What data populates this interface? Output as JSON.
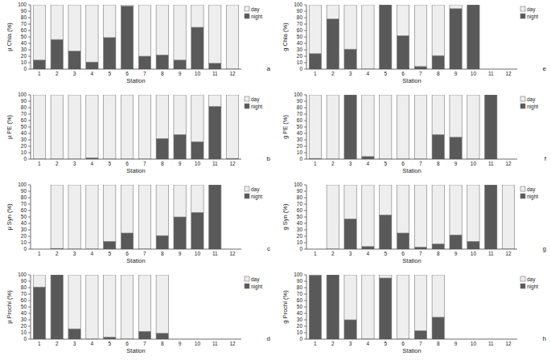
{
  "chart_data": [
    {
      "type": "bar",
      "title": "a",
      "x_label": "Station",
      "y_label": "µ Chla (%)",
      "stacked": true,
      "legend": "top-right",
      "categories": [
        "1",
        "2",
        "3",
        "4",
        "5",
        "6",
        "7",
        "8",
        "9",
        "10",
        "11",
        "12"
      ],
      "ylim": [
        0,
        100
      ],
      "yticks": [
        0,
        10,
        20,
        30,
        40,
        50,
        60,
        70,
        80,
        90,
        100
      ],
      "series": [
        {
          "name": "night",
          "color": "#595959",
          "values": [
            14,
            46,
            28,
            11,
            49,
            98,
            20,
            22,
            14,
            65,
            9,
            0
          ]
        },
        {
          "name": "day",
          "color": "#eeeeee",
          "values": [
            86,
            54,
            72,
            89,
            51,
            2,
            80,
            78,
            86,
            35,
            91,
            100
          ]
        }
      ]
    },
    {
      "type": "bar",
      "title": "b",
      "x_label": "Station",
      "y_label": "µ PE (%)",
      "stacked": true,
      "legend": "top-right",
      "categories": [
        "1",
        "2",
        "3",
        "4",
        "5",
        "6",
        "7",
        "8",
        "9",
        "10",
        "11",
        "12"
      ],
      "ylim": [
        0,
        100
      ],
      "yticks": [
        0,
        10,
        20,
        30,
        40,
        50,
        60,
        70,
        80,
        90,
        100
      ],
      "series": [
        {
          "name": "night",
          "color": "#595959",
          "values": [
            0,
            0,
            0,
            2,
            0,
            0,
            0,
            32,
            38,
            27,
            82,
            1
          ]
        },
        {
          "name": "day",
          "color": "#eeeeee",
          "values": [
            100,
            100,
            100,
            98,
            100,
            100,
            100,
            68,
            62,
            73,
            18,
            99
          ]
        }
      ]
    },
    {
      "type": "bar",
      "title": "c",
      "x_label": "Station",
      "y_label": "µ Syn (%)",
      "stacked": true,
      "legend": "top-right",
      "categories": [
        "1",
        "2",
        "3",
        "4",
        "5",
        "6",
        "7",
        "8",
        "9",
        "10",
        "11",
        "12"
      ],
      "ylim": [
        0,
        100
      ],
      "yticks": [
        0,
        10,
        20,
        30,
        40,
        50,
        60,
        70,
        80,
        90,
        100
      ],
      "series": [
        {
          "name": "night",
          "color": "#595959",
          "values": [
            null,
            1,
            0,
            0,
            12,
            25,
            0,
            21,
            50,
            57,
            100,
            null
          ]
        },
        {
          "name": "day",
          "color": "#eeeeee",
          "values": [
            null,
            99,
            100,
            100,
            88,
            75,
            100,
            79,
            50,
            43,
            0,
            null
          ]
        }
      ]
    },
    {
      "type": "bar",
      "title": "d",
      "x_label": "Station",
      "y_label": "µ Prochl (%)",
      "stacked": true,
      "legend": "top-right",
      "categories": [
        "1",
        "2",
        "3",
        "4",
        "5",
        "6",
        "7",
        "8",
        "9",
        "10",
        "11",
        "12"
      ],
      "ylim": [
        0,
        100
      ],
      "yticks": [
        0,
        10,
        20,
        30,
        40,
        50,
        60,
        70,
        80,
        90,
        100
      ],
      "series": [
        {
          "name": "night",
          "color": "#595959",
          "values": [
            81,
            100,
            16,
            0,
            3,
            0,
            12,
            9,
            null,
            null,
            null,
            null
          ]
        },
        {
          "name": "day",
          "color": "#eeeeee",
          "values": [
            19,
            0,
            84,
            100,
            97,
            100,
            88,
            91,
            null,
            null,
            null,
            null
          ]
        }
      ]
    },
    {
      "type": "bar",
      "title": "e",
      "x_label": "Station",
      "y_label": "g Chla (%)",
      "stacked": true,
      "legend": "top-right",
      "categories": [
        "1",
        "2",
        "3",
        "4",
        "5",
        "6",
        "7",
        "8",
        "9",
        "10",
        "11",
        "12"
      ],
      "ylim": [
        0,
        100
      ],
      "yticks": [
        0,
        10,
        20,
        30,
        40,
        50,
        60,
        70,
        80,
        90,
        100
      ],
      "series": [
        {
          "name": "night",
          "color": "#595959",
          "values": [
            24,
            78,
            31,
            0,
            100,
            52,
            4,
            21,
            94,
            100,
            null,
            null
          ]
        },
        {
          "name": "day",
          "color": "#eeeeee",
          "values": [
            76,
            22,
            69,
            100,
            0,
            48,
            96,
            79,
            6,
            0,
            null,
            null
          ]
        }
      ]
    },
    {
      "type": "bar",
      "title": "f",
      "x_label": "Station",
      "y_label": "g PE (%)",
      "stacked": true,
      "legend": "top-right",
      "categories": [
        "1",
        "2",
        "3",
        "4",
        "5",
        "6",
        "7",
        "8",
        "9",
        "10",
        "11",
        "12"
      ],
      "ylim": [
        0,
        100
      ],
      "yticks": [
        0,
        10,
        20,
        30,
        40,
        50,
        60,
        70,
        80,
        90,
        100
      ],
      "series": [
        {
          "name": "night",
          "color": "#595959",
          "values": [
            1,
            0,
            100,
            4,
            0,
            0,
            0,
            38,
            34,
            0,
            100,
            null
          ]
        },
        {
          "name": "day",
          "color": "#eeeeee",
          "values": [
            99,
            100,
            0,
            96,
            100,
            100,
            100,
            62,
            66,
            100,
            0,
            null
          ]
        }
      ]
    },
    {
      "type": "bar",
      "title": "g",
      "x_label": "Station",
      "y_label": "g Syn (%)",
      "stacked": true,
      "legend": "top-right",
      "categories": [
        "1",
        "2",
        "3",
        "4",
        "5",
        "6",
        "7",
        "8",
        "9",
        "10",
        "11",
        "12"
      ],
      "ylim": [
        0,
        100
      ],
      "yticks": [
        0,
        10,
        20,
        30,
        40,
        50,
        60,
        70,
        80,
        90,
        100
      ],
      "series": [
        {
          "name": "night",
          "color": "#595959",
          "values": [
            null,
            0,
            47,
            4,
            53,
            25,
            3,
            8,
            22,
            12,
            100,
            0
          ]
        },
        {
          "name": "day",
          "color": "#eeeeee",
          "values": [
            null,
            100,
            53,
            96,
            47,
            75,
            97,
            92,
            78,
            88,
            0,
            100
          ]
        }
      ]
    },
    {
      "type": "bar",
      "title": "h",
      "x_label": "Station",
      "y_label": "g Prochl (%)",
      "stacked": true,
      "legend": "top-right",
      "categories": [
        "1",
        "2",
        "3",
        "4",
        "5",
        "6",
        "7",
        "8",
        "9",
        "10",
        "11",
        "12"
      ],
      "ylim": [
        0,
        100
      ],
      "yticks": [
        0,
        10,
        20,
        30,
        40,
        50,
        60,
        70,
        80,
        90,
        100
      ],
      "series": [
        {
          "name": "night",
          "color": "#595959",
          "values": [
            99,
            100,
            30,
            0,
            95,
            0,
            13,
            34,
            null,
            null,
            null,
            null
          ]
        },
        {
          "name": "day",
          "color": "#eeeeee",
          "values": [
            1,
            0,
            70,
            100,
            5,
            100,
            87,
            66,
            null,
            null,
            null,
            null
          ]
        }
      ]
    }
  ]
}
